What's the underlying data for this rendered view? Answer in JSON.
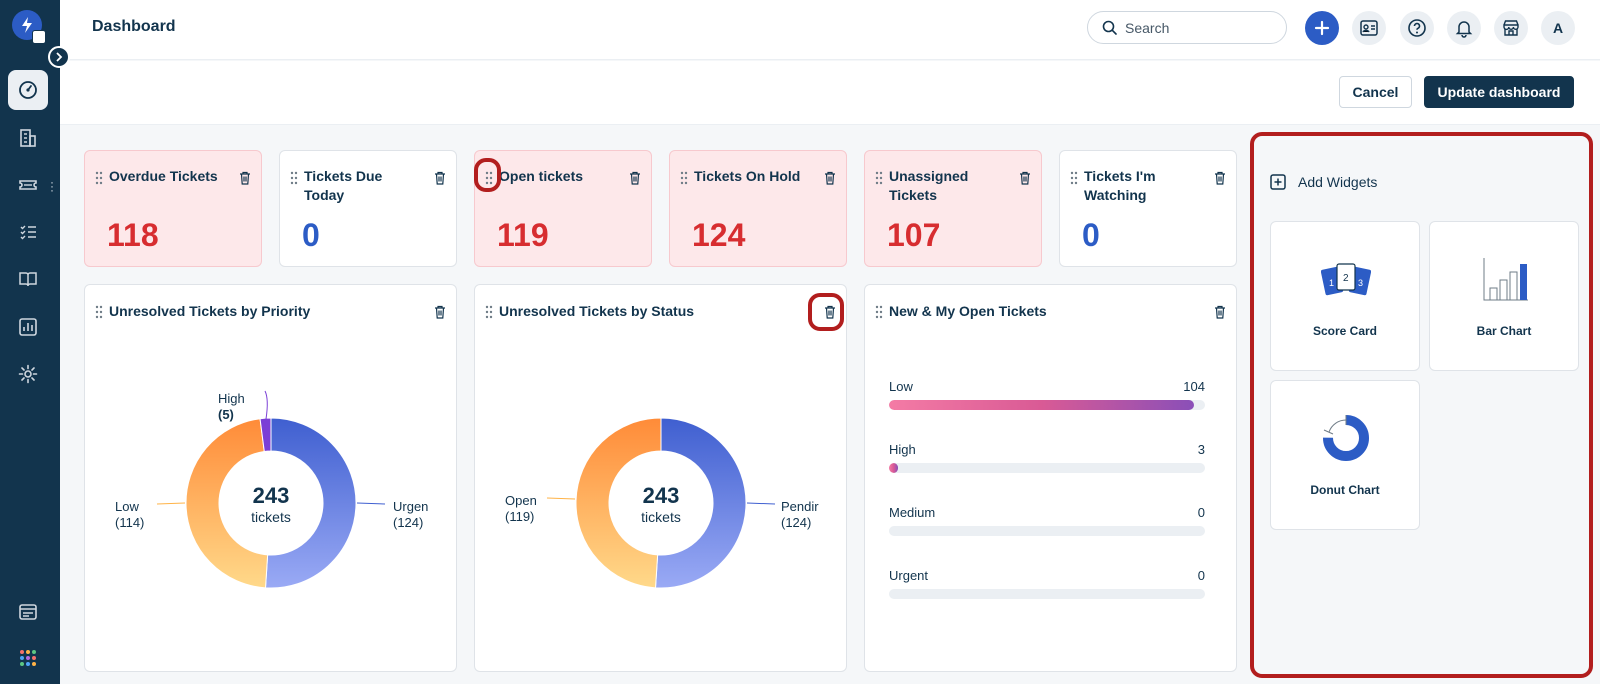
{
  "header": {
    "title": "Dashboard",
    "search_placeholder": "Search",
    "avatar": "A"
  },
  "actions": {
    "cancel": "Cancel",
    "update": "Update dashboard"
  },
  "scorecards": [
    {
      "title": "Overdue Tickets",
      "value": "118",
      "alert": true
    },
    {
      "title": "Tickets Due Today",
      "value": "0",
      "alert": false
    },
    {
      "title": "Open tickets",
      "value": "119",
      "alert": true
    },
    {
      "title": "Tickets On Hold",
      "value": "124",
      "alert": true
    },
    {
      "title": "Unassigned Tickets",
      "value": "107",
      "alert": true
    },
    {
      "title": "Tickets I'm Watching",
      "value": "0",
      "alert": false
    }
  ],
  "panels": {
    "priority": {
      "title": "Unresolved Tickets by Priority",
      "total": "243",
      "unit": "tickets",
      "labels": {
        "high": "High",
        "high_count": "(5)",
        "low": "Low",
        "low_count": "(114)",
        "urgent": "Urgen",
        "urgent_count": "(124)"
      }
    },
    "status": {
      "title": "Unresolved Tickets by Status",
      "total": "243",
      "unit": "tickets",
      "labels": {
        "open": "Open",
        "open_count": "(119)",
        "pending": "Pendir",
        "pending_count": "(124)"
      }
    },
    "new_open": {
      "title": "New & My Open Tickets",
      "rows": [
        {
          "label": "Low",
          "value": "104",
          "fraction": 0.965
        },
        {
          "label": "High",
          "value": "3",
          "fraction": 0.028
        },
        {
          "label": "Medium",
          "value": "0",
          "fraction": 0
        },
        {
          "label": "Urgent",
          "value": "0",
          "fraction": 0
        }
      ]
    }
  },
  "chart_data": [
    {
      "type": "pie",
      "title": "Unresolved Tickets by Priority",
      "categories": [
        "Urgent",
        "Low",
        "High"
      ],
      "values": [
        124,
        114,
        5
      ],
      "colors": [
        "#3f5fd0",
        "#ffb347",
        "#7b3fd6"
      ]
    },
    {
      "type": "pie",
      "title": "Unresolved Tickets by Status",
      "categories": [
        "Pending",
        "Open"
      ],
      "values": [
        124,
        119
      ],
      "colors": [
        "#3f5fd0",
        "#ffb347"
      ]
    },
    {
      "type": "bar",
      "title": "New & My Open Tickets",
      "categories": [
        "Low",
        "High",
        "Medium",
        "Urgent"
      ],
      "values": [
        104,
        3,
        0,
        0
      ]
    }
  ],
  "widgets": {
    "add_label": "Add Widgets",
    "items": [
      {
        "label": "Score Card"
      },
      {
        "label": "Bar Chart"
      },
      {
        "label": "Donut Chart"
      }
    ],
    "scorecard_icon_digits": [
      "1",
      "2",
      "3"
    ]
  },
  "colors": {
    "sidebar": "#12344d",
    "accent": "#2c5cc5",
    "alert_bg": "#fde8ea",
    "alert_text": "#d72d30",
    "highlight": "#b21e1e"
  }
}
